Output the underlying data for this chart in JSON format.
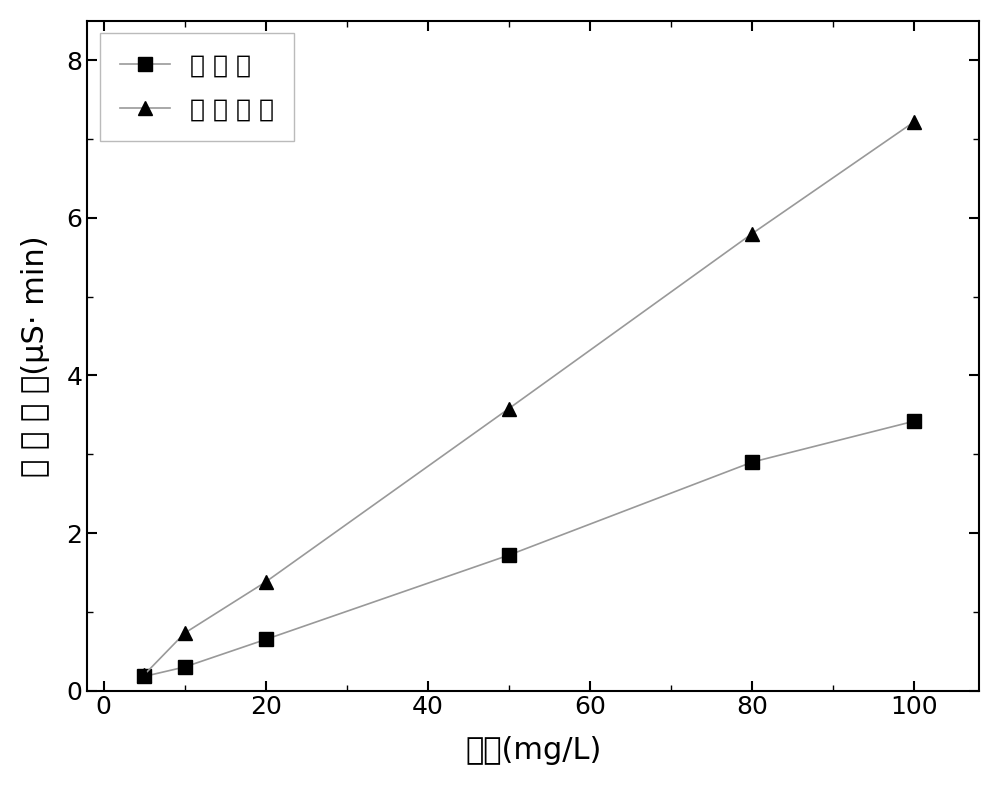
{
  "sulfate_x": [
    5,
    10,
    20,
    50,
    80,
    100
  ],
  "sulfate_y": [
    0.18,
    0.3,
    0.65,
    1.72,
    2.9,
    3.42
  ],
  "sulfite_x": [
    5,
    10,
    20,
    50,
    80,
    100
  ],
  "sulfite_y": [
    0.2,
    0.73,
    1.38,
    3.58,
    5.8,
    7.22
  ],
  "sulfate_label": "确 酸 根",
  "sulfite_label": "亚 确 酸 根",
  "xlabel": "浓度(mg/L)",
  "ylabel": "积 分 面 积(μS· min)",
  "xlim": [
    -2,
    108
  ],
  "ylim": [
    0,
    8.5
  ],
  "xticks": [
    0,
    20,
    40,
    60,
    80,
    100
  ],
  "yticks": [
    0,
    2,
    4,
    6,
    8
  ],
  "line_color": "#999999",
  "marker_color": "#000000",
  "background_color": "#ffffff",
  "legend_fontsize": 18,
  "axis_label_fontsize": 22,
  "tick_fontsize": 18,
  "marker_size": 10,
  "line_width": 1.2
}
